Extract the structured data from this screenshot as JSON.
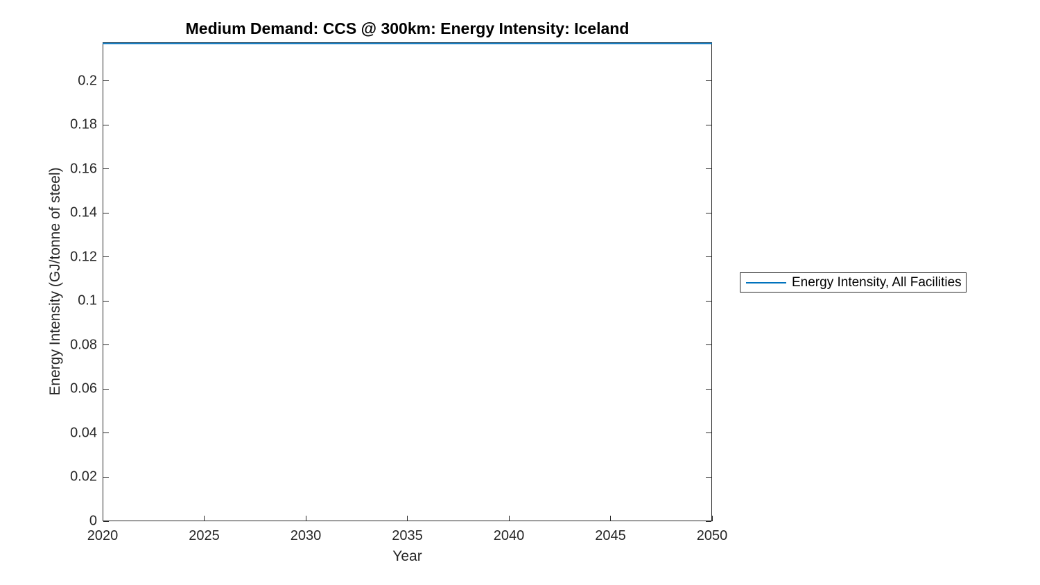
{
  "figure": {
    "title": "Medium Demand: CCS @ 300km: Energy Intensity: Iceland",
    "xlabel": "Year",
    "ylabel": "Energy Intensity (GJ/tonne of steel)",
    "legend": {
      "position": "right-outside",
      "entries": [
        {
          "label": "Energy Intensity, All Facilities",
          "color": "#0072BD"
        }
      ]
    },
    "colors": {
      "line": "#0072BD",
      "axis": "#262626",
      "title": "#000000",
      "background": "#ffffff"
    }
  },
  "chart_data": {
    "type": "line",
    "title": "Medium Demand: CCS @ 300km: Energy Intensity: Iceland",
    "xlabel": "Year",
    "ylabel": "Energy Intensity (GJ/tonne of steel)",
    "xlim": [
      2020,
      2050
    ],
    "ylim": [
      0,
      0.2175
    ],
    "xticks": [
      2020,
      2025,
      2030,
      2035,
      2040,
      2045,
      2050
    ],
    "xtick_labels": [
      "2020",
      "2025",
      "2030",
      "2035",
      "2040",
      "2045",
      "2050"
    ],
    "yticks": [
      0,
      0.02,
      0.04,
      0.06,
      0.08,
      0.1,
      0.12,
      0.14,
      0.16,
      0.18,
      0.2
    ],
    "ytick_labels": [
      "0",
      "0.02",
      "0.04",
      "0.06",
      "0.08",
      "0.1",
      "0.12",
      "0.14",
      "0.16",
      "0.18",
      "0.2"
    ],
    "grid": false,
    "legend_position": "right-outside",
    "series": [
      {
        "name": "Energy Intensity, All Facilities",
        "color": "#0072BD",
        "x": [
          2020,
          2025,
          2030,
          2035,
          2040,
          2045,
          2050
        ],
        "y": [
          0.217,
          0.217,
          0.217,
          0.217,
          0.217,
          0.217,
          0.217
        ],
        "note": "flat line pinned at the top edge of the axes"
      }
    ]
  }
}
